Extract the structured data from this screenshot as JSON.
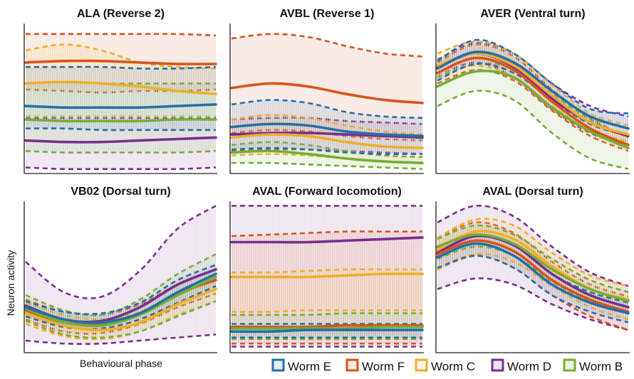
{
  "figure": {
    "ylabel": "Neuron activity",
    "xlabel": "Behavioural phase"
  },
  "legend": [
    {
      "name": "Worm E",
      "color": "#2470a8"
    },
    {
      "name": "Worm F",
      "color": "#d8541c"
    },
    {
      "name": "Worm C",
      "color": "#f0ae2a"
    },
    {
      "name": "Worm D",
      "color": "#7a2f8e"
    },
    {
      "name": "Worm B",
      "color": "#76ad36"
    }
  ],
  "chart_data": [
    {
      "type": "line",
      "title": "ALA (Reverse 2)",
      "xlabel": "",
      "ylabel": "",
      "x": [
        0,
        0.2,
        0.4,
        0.6,
        0.8,
        1.0
      ],
      "ylim": [
        0,
        1
      ],
      "series": [
        {
          "name": "Worm E",
          "color": "#2470a8",
          "mean": [
            0.45,
            0.44,
            0.44,
            0.44,
            0.45,
            0.46
          ],
          "upper": [
            0.71,
            0.71,
            0.71,
            0.7,
            0.7,
            0.71
          ],
          "lower": [
            0.3,
            0.3,
            0.29,
            0.29,
            0.29,
            0.29
          ]
        },
        {
          "name": "Worm F",
          "color": "#d8541c",
          "mean": [
            0.74,
            0.75,
            0.75,
            0.74,
            0.73,
            0.73
          ],
          "upper": [
            0.93,
            0.93,
            0.93,
            0.93,
            0.93,
            0.92
          ],
          "lower": [
            0.56,
            0.55,
            0.54,
            0.55,
            0.55,
            0.56
          ]
        },
        {
          "name": "Worm C",
          "color": "#f0ae2a",
          "mean": [
            0.6,
            0.61,
            0.6,
            0.58,
            0.55,
            0.53
          ],
          "upper": [
            0.82,
            0.86,
            0.82,
            0.74,
            0.71,
            0.7
          ],
          "lower": [
            0.38,
            0.38,
            0.38,
            0.38,
            0.38,
            0.38
          ]
        },
        {
          "name": "Worm D",
          "color": "#7a2f8e",
          "mean": [
            0.22,
            0.21,
            0.21,
            0.22,
            0.23,
            0.24
          ],
          "upper": [
            0.37,
            0.37,
            0.37,
            0.37,
            0.37,
            0.37
          ],
          "lower": [
            0.04,
            0.03,
            0.03,
            0.03,
            0.03,
            0.04
          ]
        },
        {
          "name": "Worm B",
          "color": "#76ad36",
          "mean": [
            0.36,
            0.35,
            0.35,
            0.35,
            0.36,
            0.36
          ],
          "upper": [
            0.6,
            0.61,
            0.6,
            0.6,
            0.6,
            0.6
          ],
          "lower": [
            0.15,
            0.14,
            0.14,
            0.14,
            0.14,
            0.15
          ]
        }
      ]
    },
    {
      "type": "line",
      "title": "AVBL (Reverse 1)",
      "xlabel": "",
      "ylabel": "",
      "x": [
        0,
        0.2,
        0.4,
        0.6,
        0.8,
        1.0
      ],
      "ylim": [
        0,
        1
      ],
      "series": [
        {
          "name": "Worm E",
          "color": "#2470a8",
          "mean": [
            0.31,
            0.33,
            0.32,
            0.28,
            0.26,
            0.25
          ],
          "upper": [
            0.46,
            0.49,
            0.47,
            0.41,
            0.38,
            0.37
          ],
          "lower": [
            0.16,
            0.17,
            0.16,
            0.14,
            0.13,
            0.13
          ]
        },
        {
          "name": "Worm F",
          "color": "#d8541c",
          "mean": [
            0.57,
            0.6,
            0.58,
            0.53,
            0.49,
            0.47
          ],
          "upper": [
            0.9,
            0.93,
            0.91,
            0.85,
            0.8,
            0.78
          ],
          "lower": [
            0.27,
            0.29,
            0.28,
            0.25,
            0.23,
            0.22
          ]
        },
        {
          "name": "Worm C",
          "color": "#f0ae2a",
          "mean": [
            0.24,
            0.26,
            0.25,
            0.21,
            0.18,
            0.17
          ],
          "upper": [
            0.36,
            0.39,
            0.37,
            0.32,
            0.28,
            0.26
          ],
          "lower": [
            0.12,
            0.13,
            0.12,
            0.1,
            0.08,
            0.07
          ]
        },
        {
          "name": "Worm D",
          "color": "#7a2f8e",
          "mean": [
            0.26,
            0.27,
            0.27,
            0.26,
            0.25,
            0.24
          ],
          "upper": [
            0.36,
            0.37,
            0.37,
            0.35,
            0.34,
            0.33
          ],
          "lower": [
            0.15,
            0.16,
            0.16,
            0.15,
            0.14,
            0.13
          ]
        },
        {
          "name": "Worm B",
          "color": "#76ad36",
          "mean": [
            0.14,
            0.15,
            0.13,
            0.1,
            0.08,
            0.07
          ],
          "upper": [
            0.19,
            0.21,
            0.19,
            0.15,
            0.12,
            0.11
          ],
          "lower": [
            0.07,
            0.07,
            0.06,
            0.05,
            0.04,
            0.03
          ]
        }
      ]
    },
    {
      "type": "line",
      "title": "AVER (Ventral turn)",
      "xlabel": "",
      "ylabel": "",
      "x": [
        0,
        0.2,
        0.4,
        0.6,
        0.8,
        1.0
      ],
      "ylim": [
        0,
        1
      ],
      "series": [
        {
          "name": "Worm E",
          "color": "#2470a8",
          "mean": [
            0.7,
            0.81,
            0.74,
            0.55,
            0.38,
            0.3
          ],
          "upper": [
            0.75,
            0.89,
            0.8,
            0.6,
            0.43,
            0.4
          ],
          "lower": [
            0.62,
            0.73,
            0.67,
            0.49,
            0.33,
            0.25
          ]
        },
        {
          "name": "Worm F",
          "color": "#d8541c",
          "mean": [
            0.67,
            0.77,
            0.69,
            0.48,
            0.3,
            0.19
          ],
          "upper": [
            0.74,
            0.86,
            0.78,
            0.56,
            0.37,
            0.24
          ],
          "lower": [
            0.6,
            0.69,
            0.62,
            0.42,
            0.25,
            0.15
          ]
        },
        {
          "name": "Worm C",
          "color": "#f0ae2a",
          "mean": [
            0.72,
            0.8,
            0.72,
            0.52,
            0.34,
            0.26
          ],
          "upper": [
            0.8,
            0.88,
            0.8,
            0.59,
            0.4,
            0.32
          ],
          "lower": [
            0.65,
            0.72,
            0.64,
            0.45,
            0.29,
            0.21
          ]
        },
        {
          "name": "Worm D",
          "color": "#7a2f8e",
          "mean": [
            0.71,
            0.8,
            0.71,
            0.5,
            0.34,
            0.25
          ],
          "upper": [
            0.76,
            0.87,
            0.8,
            0.6,
            0.45,
            0.38
          ],
          "lower": [
            0.65,
            0.74,
            0.64,
            0.43,
            0.27,
            0.19
          ]
        },
        {
          "name": "Worm B",
          "color": "#76ad36",
          "mean": [
            0.58,
            0.68,
            0.64,
            0.44,
            0.28,
            0.17
          ],
          "upper": [
            0.64,
            0.73,
            0.7,
            0.53,
            0.36,
            0.24
          ],
          "lower": [
            0.45,
            0.55,
            0.49,
            0.27,
            0.1,
            0.03
          ]
        }
      ]
    },
    {
      "type": "line",
      "title": "VB02 (Dorsal turn)",
      "xlabel": "",
      "ylabel": "",
      "x": [
        0,
        0.2,
        0.4,
        0.6,
        0.8,
        1.0
      ],
      "ylim": [
        0,
        1
      ],
      "series": [
        {
          "name": "Worm E",
          "color": "#2470a8",
          "mean": [
            0.3,
            0.22,
            0.2,
            0.26,
            0.4,
            0.52
          ],
          "upper": [
            0.34,
            0.27,
            0.26,
            0.33,
            0.48,
            0.58
          ],
          "lower": [
            0.24,
            0.17,
            0.16,
            0.22,
            0.33,
            0.44
          ]
        },
        {
          "name": "Worm F",
          "color": "#d8541c",
          "mean": [
            0.28,
            0.2,
            0.19,
            0.26,
            0.39,
            0.48
          ],
          "upper": [
            0.35,
            0.27,
            0.25,
            0.32,
            0.45,
            0.55
          ],
          "lower": [
            0.22,
            0.14,
            0.13,
            0.19,
            0.3,
            0.39
          ]
        },
        {
          "name": "Worm C",
          "color": "#f0ae2a",
          "mean": [
            0.26,
            0.18,
            0.15,
            0.2,
            0.32,
            0.42
          ],
          "upper": [
            0.33,
            0.25,
            0.22,
            0.27,
            0.4,
            0.5
          ],
          "lower": [
            0.19,
            0.11,
            0.09,
            0.14,
            0.25,
            0.34
          ]
        },
        {
          "name": "Worm D",
          "color": "#7a2f8e",
          "mean": [
            0.31,
            0.22,
            0.21,
            0.3,
            0.45,
            0.55
          ],
          "upper": [
            0.6,
            0.4,
            0.37,
            0.54,
            0.82,
            0.97
          ],
          "lower": [
            0.08,
            0.06,
            0.06,
            0.08,
            0.1,
            0.12
          ]
        },
        {
          "name": "Worm B",
          "color": "#76ad36",
          "mean": [
            0.29,
            0.2,
            0.18,
            0.25,
            0.38,
            0.5
          ],
          "upper": [
            0.38,
            0.28,
            0.25,
            0.35,
            0.52,
            0.65
          ],
          "lower": [
            0.21,
            0.12,
            0.1,
            0.14,
            0.24,
            0.34
          ]
        }
      ]
    },
    {
      "type": "line",
      "title": "AVAL (Forward locomotion)",
      "xlabel": "",
      "ylabel": "",
      "x": [
        0,
        0.2,
        0.4,
        0.6,
        0.8,
        1.0
      ],
      "ylim": [
        0,
        1
      ],
      "series": [
        {
          "name": "Worm E",
          "color": "#2470a8",
          "mean": [
            0.14,
            0.14,
            0.15,
            0.15,
            0.15,
            0.15
          ],
          "upper": [
            0.19,
            0.19,
            0.19,
            0.19,
            0.19,
            0.19
          ],
          "lower": [
            0.1,
            0.1,
            0.1,
            0.1,
            0.1,
            0.1
          ]
        },
        {
          "name": "Worm F",
          "color": "#d8541c",
          "mean": [
            0.17,
            0.17,
            0.17,
            0.18,
            0.18,
            0.18
          ],
          "upper": [
            0.77,
            0.78,
            0.79,
            0.8,
            0.8,
            0.8
          ],
          "lower": [
            0.06,
            0.06,
            0.06,
            0.06,
            0.06,
            0.06
          ]
        },
        {
          "name": "Worm C",
          "color": "#f0ae2a",
          "mean": [
            0.5,
            0.5,
            0.5,
            0.51,
            0.52,
            0.52
          ],
          "upper": [
            0.53,
            0.53,
            0.54,
            0.55,
            0.55,
            0.55
          ],
          "lower": [
            0.27,
            0.27,
            0.28,
            0.28,
            0.28,
            0.28
          ]
        },
        {
          "name": "Worm D",
          "color": "#7a2f8e",
          "mean": [
            0.73,
            0.73,
            0.73,
            0.74,
            0.75,
            0.76
          ],
          "upper": [
            0.97,
            0.97,
            0.97,
            0.97,
            0.97,
            0.97
          ],
          "lower": [
            0.04,
            0.04,
            0.04,
            0.04,
            0.04,
            0.04
          ]
        },
        {
          "name": "Worm B",
          "color": "#76ad36",
          "mean": [
            0.16,
            0.16,
            0.16,
            0.16,
            0.17,
            0.17
          ],
          "upper": [
            0.25,
            0.25,
            0.25,
            0.26,
            0.26,
            0.26
          ],
          "lower": [
            0.09,
            0.09,
            0.09,
            0.09,
            0.09,
            0.09
          ]
        }
      ]
    },
    {
      "type": "line",
      "title": "AVAL (Dorsal turn)",
      "xlabel": "",
      "ylabel": "",
      "x": [
        0,
        0.2,
        0.4,
        0.6,
        0.8,
        1.0
      ],
      "ylim": [
        0,
        1
      ],
      "series": [
        {
          "name": "Worm E",
          "color": "#2470a8",
          "mean": [
            0.63,
            0.72,
            0.64,
            0.45,
            0.33,
            0.26
          ],
          "upper": [
            0.69,
            0.78,
            0.71,
            0.52,
            0.4,
            0.33
          ],
          "lower": [
            0.56,
            0.64,
            0.56,
            0.38,
            0.27,
            0.2
          ]
        },
        {
          "name": "Worm F",
          "color": "#d8541c",
          "mean": [
            0.65,
            0.74,
            0.67,
            0.48,
            0.35,
            0.27
          ],
          "upper": [
            0.75,
            0.86,
            0.79,
            0.6,
            0.45,
            0.37
          ],
          "lower": [
            0.55,
            0.64,
            0.56,
            0.38,
            0.24,
            0.15
          ]
        },
        {
          "name": "Worm C",
          "color": "#f0ae2a",
          "mean": [
            0.68,
            0.8,
            0.75,
            0.57,
            0.42,
            0.35
          ],
          "upper": [
            0.76,
            0.88,
            0.84,
            0.66,
            0.51,
            0.44
          ],
          "lower": [
            0.55,
            0.65,
            0.6,
            0.44,
            0.3,
            0.22
          ]
        },
        {
          "name": "Worm D",
          "color": "#7a2f8e",
          "mean": [
            0.66,
            0.77,
            0.71,
            0.52,
            0.38,
            0.3
          ],
          "upper": [
            0.86,
            0.97,
            0.9,
            0.7,
            0.53,
            0.44
          ],
          "lower": [
            0.42,
            0.49,
            0.45,
            0.32,
            0.22,
            0.15
          ]
        },
        {
          "name": "Worm B",
          "color": "#76ad36",
          "mean": [
            0.7,
            0.78,
            0.72,
            0.55,
            0.42,
            0.34
          ],
          "upper": [
            0.75,
            0.84,
            0.78,
            0.62,
            0.48,
            0.4
          ],
          "lower": [
            0.62,
            0.7,
            0.64,
            0.47,
            0.34,
            0.27
          ]
        }
      ]
    }
  ]
}
